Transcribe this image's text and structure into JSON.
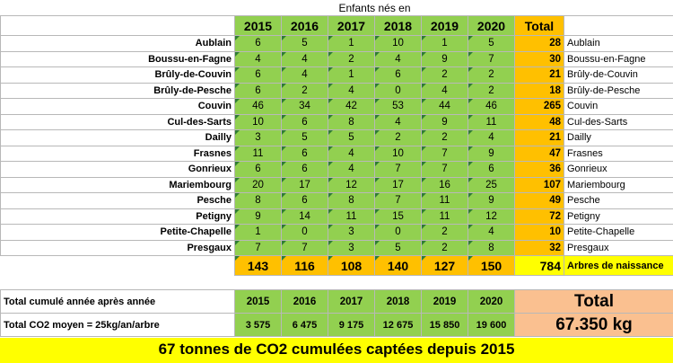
{
  "caption": "Enfants nés en",
  "years": [
    "2015",
    "2016",
    "2017",
    "2018",
    "2019",
    "2020"
  ],
  "total_header": "Total",
  "rows": [
    {
      "name": "Aublain",
      "values": [
        "6",
        "5",
        "1",
        "10",
        "1",
        "5"
      ],
      "total": "28"
    },
    {
      "name": "Boussu-en-Fagne",
      "values": [
        "4",
        "4",
        "2",
        "4",
        "9",
        "7"
      ],
      "total": "30"
    },
    {
      "name": "Brûly-de-Couvin",
      "values": [
        "6",
        "4",
        "1",
        "6",
        "2",
        "2"
      ],
      "total": "21"
    },
    {
      "name": "Brûly-de-Pesche",
      "values": [
        "6",
        "2",
        "4",
        "0",
        "4",
        "2"
      ],
      "total": "18"
    },
    {
      "name": "Couvin",
      "values": [
        "46",
        "34",
        "42",
        "53",
        "44",
        "46"
      ],
      "total": "265"
    },
    {
      "name": "Cul-des-Sarts",
      "values": [
        "10",
        "6",
        "8",
        "4",
        "9",
        "11"
      ],
      "total": "48"
    },
    {
      "name": "Dailly",
      "values": [
        "3",
        "5",
        "5",
        "2",
        "2",
        "4"
      ],
      "total": "21"
    },
    {
      "name": "Frasnes",
      "values": [
        "11",
        "6",
        "4",
        "10",
        "7",
        "9"
      ],
      "total": "47"
    },
    {
      "name": "Gonrieux",
      "values": [
        "6",
        "6",
        "4",
        "7",
        "7",
        "6"
      ],
      "total": "36"
    },
    {
      "name": "Mariembourg",
      "values": [
        "20",
        "17",
        "12",
        "17",
        "16",
        "25"
      ],
      "total": "107"
    },
    {
      "name": "Pesche",
      "values": [
        "8",
        "6",
        "8",
        "7",
        "11",
        "9"
      ],
      "total": "49"
    },
    {
      "name": "Petigny",
      "values": [
        "9",
        "14",
        "11",
        "15",
        "11",
        "12"
      ],
      "total": "72"
    },
    {
      "name": "Petite-Chapelle",
      "values": [
        "1",
        "0",
        "3",
        "0",
        "2",
        "4"
      ],
      "total": "10"
    },
    {
      "name": "Presgaux",
      "values": [
        "7",
        "7",
        "3",
        "5",
        "2",
        "8"
      ],
      "total": "32"
    }
  ],
  "year_totals": [
    "143",
    "116",
    "108",
    "140",
    "127",
    "150"
  ],
  "grand_total": "784",
  "grand_total_label": "Arbres de naissance",
  "cumulative": {
    "label": "Total cumulé année après année",
    "years": [
      "2015",
      "2016",
      "2017",
      "2018",
      "2019",
      "2020"
    ],
    "co2_label": "Total CO2 moyen =  25kg/an/arbre",
    "co2_values": [
      "3 575",
      "6 475",
      "9 175",
      "12 675",
      "15 850",
      "19 600"
    ],
    "total_title": "Total",
    "total_value": "67.350 kg"
  },
  "banner": "67 tonnes de CO2 cumulées captées depuis 2015",
  "colors": {
    "green": "#92d050",
    "orange": "#ffc000",
    "yellow": "#ffff00",
    "peach": "#fac090"
  }
}
